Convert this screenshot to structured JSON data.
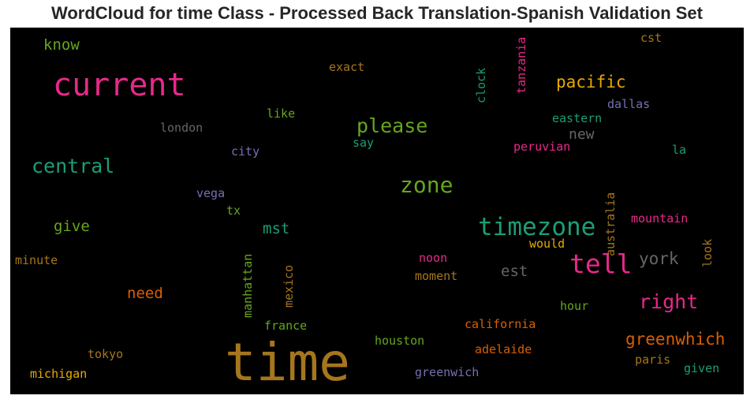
{
  "title": "WordCloud for time Class - Processed Back Translation-Spanish Validation Set",
  "colors": {
    "pink": "#e7298a",
    "gold": "#a6761d",
    "teal": "#1b9e77",
    "green": "#66a61e",
    "orange": "#d95f02",
    "purple": "#7570b3",
    "gray": "#666666",
    "yellow": "#e6ab02"
  },
  "words": {
    "time": "time",
    "current": "current",
    "timezone": "timezone",
    "tell": "tell",
    "zone": "zone",
    "central": "central",
    "please": "please",
    "right": "right",
    "greenwhich": "greenwhich",
    "pacific": "pacific",
    "york": "york",
    "know": "know",
    "give": "give",
    "need": "need",
    "mst": "mst",
    "est": "est",
    "new": "new",
    "exact": "exact",
    "london": "london",
    "like": "like",
    "city": "city",
    "say": "say",
    "vega": "vega",
    "tx": "tx",
    "eastern": "eastern",
    "dallas": "dallas",
    "peruvian": "peruvian",
    "la": "la",
    "cst": "cst",
    "mountain": "mountain",
    "would": "would",
    "noon": "noon",
    "moment": "moment",
    "minute": "minute",
    "france": "france",
    "houston": "houston",
    "california": "california",
    "adelaide": "adelaide",
    "hour": "hour",
    "tokyo": "tokyo",
    "michigan": "michigan",
    "greenwich": "greenwich",
    "paris": "paris",
    "given": "given",
    "clock": "clock",
    "tanzania": "tanzania",
    "australia": "australia",
    "manhattan": "manhattan",
    "mexico": "mexico",
    "look": "look"
  }
}
